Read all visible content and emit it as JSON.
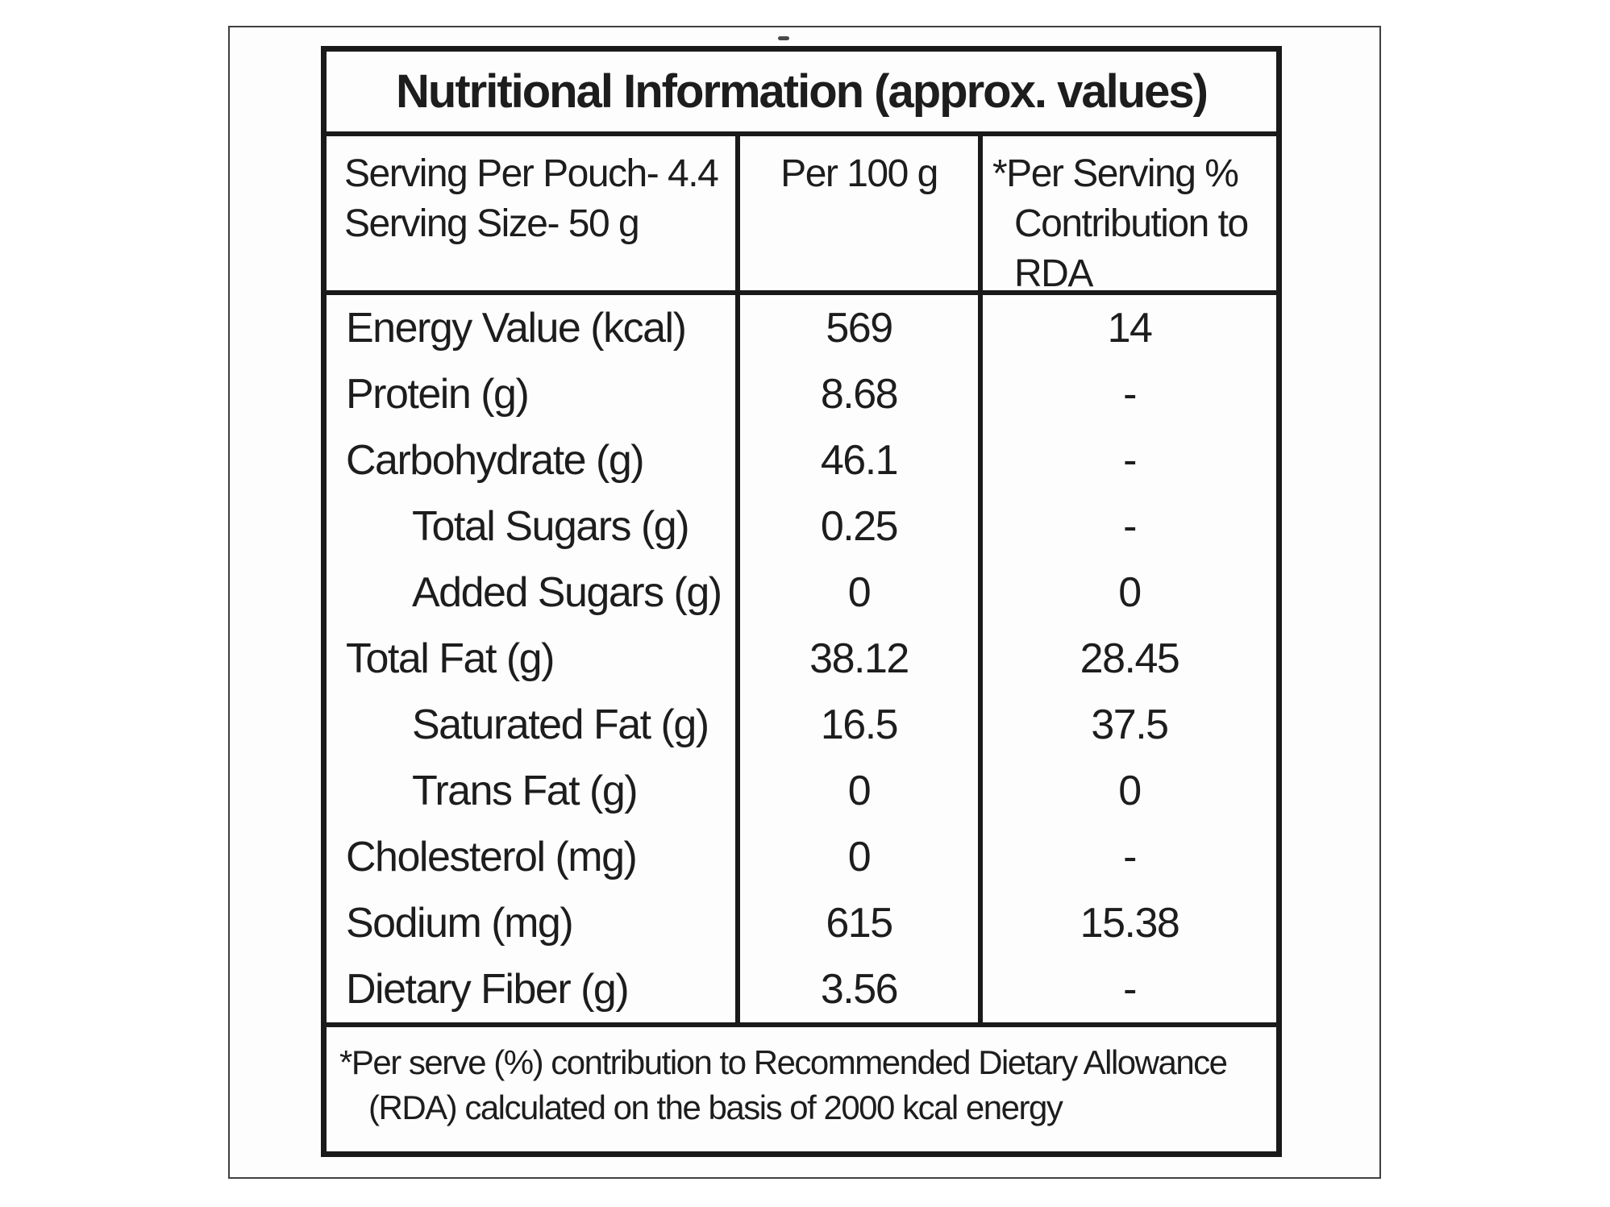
{
  "title": "Nutritional Information (approx. values)",
  "header": {
    "serving_info_line1": "Serving Per Pouch- 4.4",
    "serving_info_line2": "Serving Size- 50 g",
    "per_100g": "Per 100 g",
    "per_serving_line1": "*Per Serving %",
    "per_serving_line2": "Contribution to",
    "per_serving_line3": "RDA"
  },
  "rows": [
    {
      "label": "Energy Value (kcal)",
      "per_100g": "569",
      "per_serving": "14",
      "indent": false
    },
    {
      "label": "Protein (g)",
      "per_100g": "8.68",
      "per_serving": "-",
      "indent": false
    },
    {
      "label": "Carbohydrate (g)",
      "per_100g": "46.1",
      "per_serving": "-",
      "indent": false
    },
    {
      "label": "Total Sugars (g)",
      "per_100g": "0.25",
      "per_serving": "-",
      "indent": true
    },
    {
      "label": "Added Sugars (g)",
      "per_100g": "0",
      "per_serving": "0",
      "indent": true
    },
    {
      "label": "Total Fat (g)",
      "per_100g": "38.12",
      "per_serving": "28.45",
      "indent": false
    },
    {
      "label": "Saturated Fat (g)",
      "per_100g": "16.5",
      "per_serving": "37.5",
      "indent": true
    },
    {
      "label": "Trans Fat (g)",
      "per_100g": "0",
      "per_serving": "0",
      "indent": true
    },
    {
      "label": "Cholesterol (mg)",
      "per_100g": "0",
      "per_serving": "-",
      "indent": false
    },
    {
      "label": "Sodium (mg)",
      "per_100g": "615",
      "per_serving": "15.38",
      "indent": false
    },
    {
      "label": "Dietary Fiber (g)",
      "per_100g": "3.56",
      "per_serving": "-",
      "indent": false
    }
  ],
  "footnote": {
    "line1": "*Per serve (%) contribution to Recommended Dietary Allowance",
    "line2": "(RDA) calculated on the basis of 2000 kcal energy"
  },
  "colors": {
    "text": "#1d1d1d",
    "table_border": "#1a1a1a",
    "photo_border": "#3f3f3f",
    "background": "#ffffff"
  }
}
